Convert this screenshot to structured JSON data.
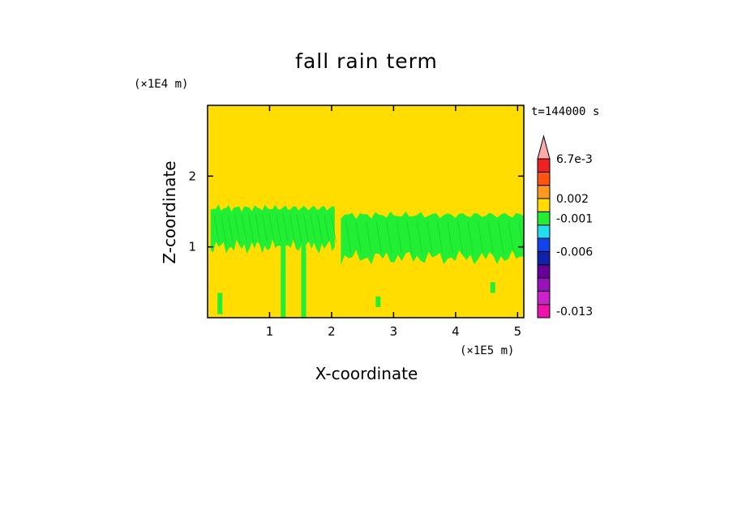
{
  "chart_data": {
    "type": "heatmap",
    "title": "fall rain term",
    "xlabel": "X-coordinate",
    "ylabel": "Z-coordinate",
    "x_unit": "(×1E5 m)",
    "y_unit": "(×1E4 m)",
    "time_label": "t=144000 s",
    "xlim": [
      0,
      5.1
    ],
    "ylim": [
      0,
      3.0
    ],
    "x_ticks": [
      "1",
      "2",
      "3",
      "4",
      "5"
    ],
    "y_ticks": [
      "1",
      "2"
    ],
    "background_level_color": "#ffdd00",
    "field_color": "#22ee33",
    "field_bands": [
      {
        "x0": 0.05,
        "x1": 2.05,
        "z0": 1.0,
        "z1": 1.55
      },
      {
        "x0": 2.15,
        "x1": 5.1,
        "z0": 0.85,
        "z1": 1.45
      }
    ],
    "field_streaks": [
      {
        "x": 1.22,
        "z0": 0.0,
        "z1": 1.1
      },
      {
        "x": 1.55,
        "z0": 0.0,
        "z1": 1.0
      },
      {
        "x": 2.75,
        "z0": 0.15,
        "z1": 0.3
      },
      {
        "x": 0.2,
        "z0": 0.05,
        "z1": 0.35
      },
      {
        "x": 4.6,
        "z0": 0.35,
        "z1": 0.5
      }
    ],
    "colorbar": {
      "levels_bottom_to_top": [
        "#ee11aa",
        "#cc22cc",
        "#9911bb",
        "#660099",
        "#1122aa",
        "#1144ee",
        "#22ddee",
        "#22ee33",
        "#ffdd00",
        "#ff9922",
        "#ff5511",
        "#ee2222",
        "#ffaaaa"
      ],
      "labels": [
        "6.7e-3",
        "0.002",
        "-0.001",
        "-0.006",
        "-0.013"
      ],
      "label_levels": [
        12,
        9,
        7.5,
        5,
        0.5
      ]
    }
  }
}
